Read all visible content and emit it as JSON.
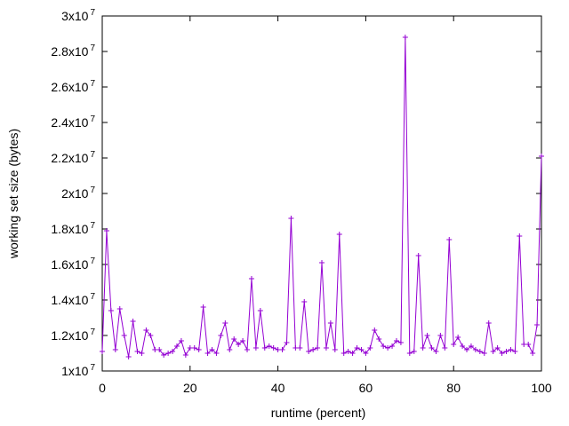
{
  "chart_data": {
    "type": "line",
    "title": "",
    "xlabel": "runtime (percent)",
    "ylabel": "working set size (bytes)",
    "xlim": [
      0,
      100
    ],
    "ylim": [
      10000000,
      30000000
    ],
    "xticks": [
      {
        "value": 0,
        "label": "0"
      },
      {
        "value": 20,
        "label": "20"
      },
      {
        "value": 40,
        "label": "40"
      },
      {
        "value": 60,
        "label": "60"
      },
      {
        "value": 80,
        "label": "80"
      },
      {
        "value": 100,
        "label": "100"
      }
    ],
    "yticks": [
      {
        "value": 10000000,
        "base": "1x10",
        "exp": "7"
      },
      {
        "value": 12000000,
        "base": "1.2x10",
        "exp": "7"
      },
      {
        "value": 14000000,
        "base": "1.4x10",
        "exp": "7"
      },
      {
        "value": 16000000,
        "base": "1.6x10",
        "exp": "7"
      },
      {
        "value": 18000000,
        "base": "1.8x10",
        "exp": "7"
      },
      {
        "value": 20000000,
        "base": "2x10",
        "exp": "7"
      },
      {
        "value": 22000000,
        "base": "2.2x10",
        "exp": "7"
      },
      {
        "value": 24000000,
        "base": "2.4x10",
        "exp": "7"
      },
      {
        "value": 26000000,
        "base": "2.6x10",
        "exp": "7"
      },
      {
        "value": 28000000,
        "base": "2.8x10",
        "exp": "7"
      },
      {
        "value": 30000000,
        "base": "3x10",
        "exp": "7"
      }
    ],
    "grid": false,
    "marker": "plus",
    "series_color": "#9400d3",
    "series": [
      {
        "x": [
          0,
          1,
          2,
          3,
          4,
          5,
          6,
          7,
          8,
          9,
          10,
          11,
          12,
          13,
          14,
          15,
          16,
          17,
          18,
          19,
          20,
          21,
          22,
          23,
          24,
          25,
          26,
          27,
          28,
          29,
          30,
          31,
          32,
          33,
          34,
          35,
          36,
          37,
          38,
          39,
          40,
          41,
          42,
          43,
          44,
          45,
          46,
          47,
          48,
          49,
          50,
          51,
          52,
          53,
          54,
          55,
          56,
          57,
          58,
          59,
          60,
          61,
          62,
          63,
          64,
          65,
          66,
          67,
          68,
          69,
          70,
          71,
          72,
          73,
          74,
          75,
          76,
          77,
          78,
          79,
          80,
          81,
          82,
          83,
          84,
          85,
          86,
          87,
          88,
          89,
          90,
          91,
          92,
          93,
          94,
          95,
          96,
          97,
          98,
          99,
          100
        ],
        "y": [
          11100000,
          17900000,
          13400000,
          11200000,
          13500000,
          12000000,
          10800000,
          12800000,
          11100000,
          11000000,
          12300000,
          12000000,
          11200000,
          11200000,
          10900000,
          11000000,
          11100000,
          11400000,
          11700000,
          10900000,
          11300000,
          11300000,
          11200000,
          13600000,
          11000000,
          11200000,
          11000000,
          12000000,
          12700000,
          11200000,
          11800000,
          11500000,
          11700000,
          11200000,
          15200000,
          11300000,
          13400000,
          11300000,
          11400000,
          11300000,
          11200000,
          11200000,
          11600000,
          18600000,
          11300000,
          11300000,
          13900000,
          11100000,
          11200000,
          11300000,
          16100000,
          11300000,
          12700000,
          11200000,
          17700000,
          11000000,
          11100000,
          11000000,
          11300000,
          11200000,
          11000000,
          11300000,
          12300000,
          11800000,
          11400000,
          11300000,
          11400000,
          11700000,
          11600000,
          28800000,
          11000000,
          11100000,
          16500000,
          11300000,
          12000000,
          11300000,
          11100000,
          12000000,
          11300000,
          17400000,
          11500000,
          11900000,
          11400000,
          11200000,
          11400000,
          11200000,
          11100000,
          11000000,
          12700000,
          11100000,
          11300000,
          11000000,
          11100000,
          11200000,
          11100000,
          17600000,
          11500000,
          11500000,
          11000000,
          12600000,
          22100000
        ]
      }
    ]
  }
}
